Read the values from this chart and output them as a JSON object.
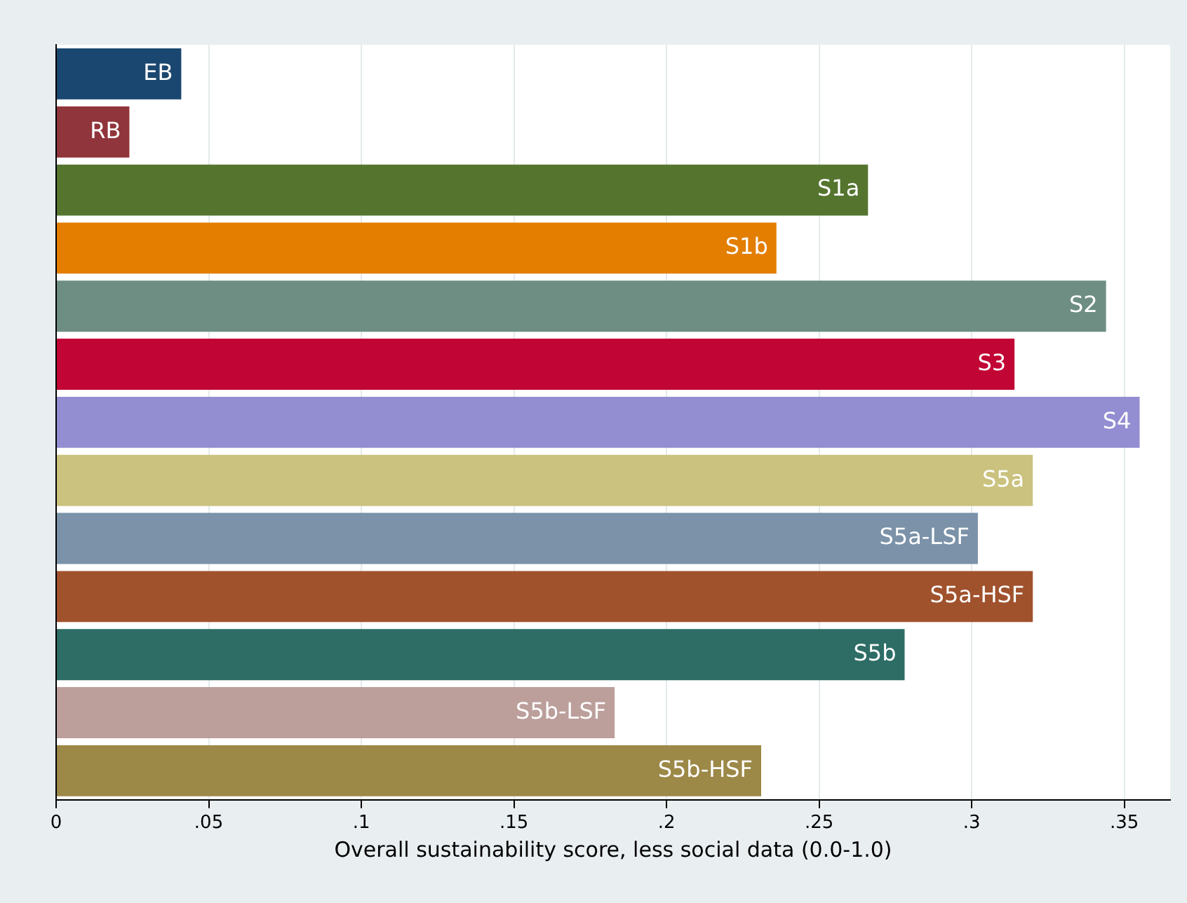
{
  "chart_data": {
    "type": "bar",
    "orientation": "horizontal",
    "xlabel": "Overall sustainability score, less social data (0.0-1.0)",
    "categories": [
      "EB",
      "RB",
      "S1a",
      "S1b",
      "S2",
      "S3",
      "S4",
      "S5a",
      "S5a-LSF",
      "S5a-HSF",
      "S5b",
      "S5b-LSF",
      "S5b-HSF"
    ],
    "values": [
      0.041,
      0.024,
      0.266,
      0.236,
      0.344,
      0.314,
      0.355,
      0.32,
      0.302,
      0.32,
      0.278,
      0.183,
      0.231
    ],
    "colors": [
      "#1a476f",
      "#90353b",
      "#55752f",
      "#e37e00",
      "#6e8e84",
      "#c10534",
      "#938dd2",
      "#cac27e",
      "#7b92a8",
      "#a0522d",
      "#2d6d66",
      "#bc9f9b",
      "#9c8847"
    ],
    "xlim": [
      0,
      0.365
    ],
    "xticks": [
      0,
      {
        "value": 0.05,
        "label": ".05"
      },
      {
        "value": 0.1,
        "label": ".1"
      },
      {
        "value": 0.15,
        "label": ".15"
      },
      {
        "value": 0.2,
        "label": ".2"
      },
      {
        "value": 0.25,
        "label": ".25"
      },
      {
        "value": 0.3,
        "label": ".3"
      },
      {
        "value": 0.35,
        "label": ".35"
      }
    ],
    "grid": "x",
    "tick_labels": "x",
    "legend": false
  }
}
